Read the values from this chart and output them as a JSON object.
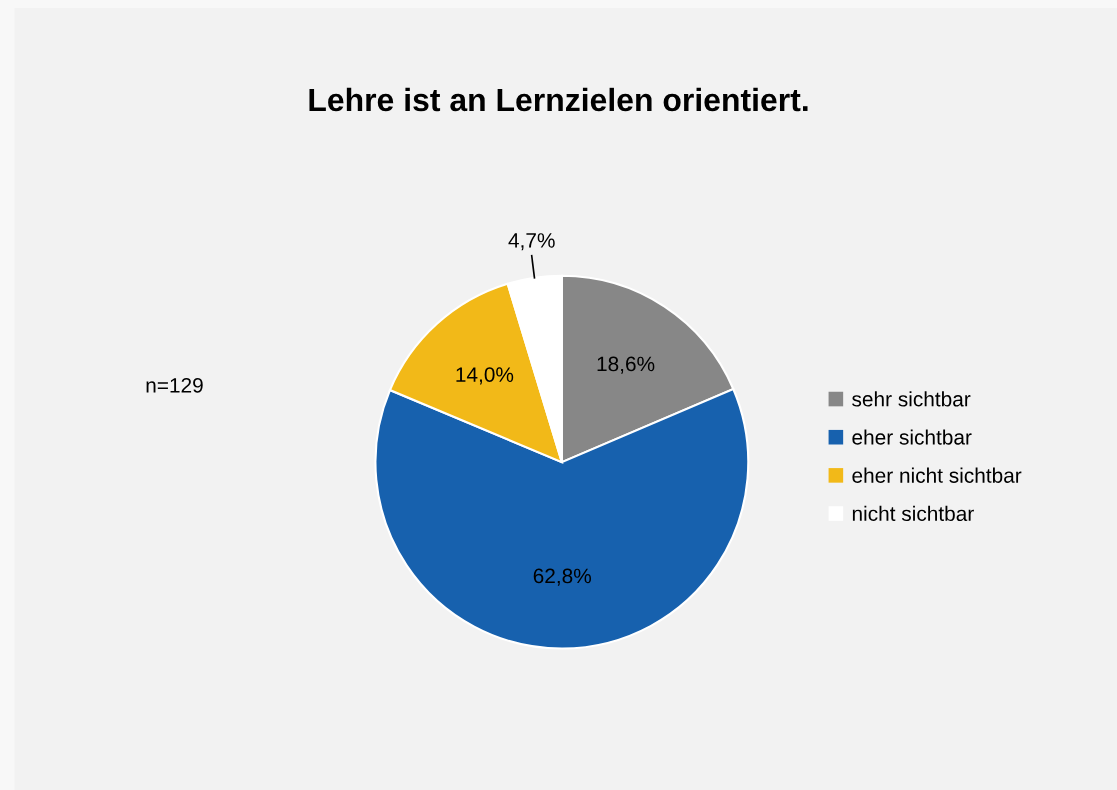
{
  "chart_data": {
    "type": "pie",
    "title": "Lehre ist an Lernzielen orientiert.",
    "categories": [
      "sehr sichtbar",
      "eher sichtbar",
      "eher nicht sichtbar",
      "nicht sichtbar"
    ],
    "values": [
      18.6,
      62.8,
      14.0,
      4.7
    ],
    "colors": [
      "#878787",
      "#1761ae",
      "#f2b918",
      "#ffffff"
    ],
    "value_labels": [
      "18,6%",
      "62,8%",
      "14,0%",
      "4,7%"
    ],
    "annotations": [
      "n=129"
    ],
    "legend": "right"
  }
}
